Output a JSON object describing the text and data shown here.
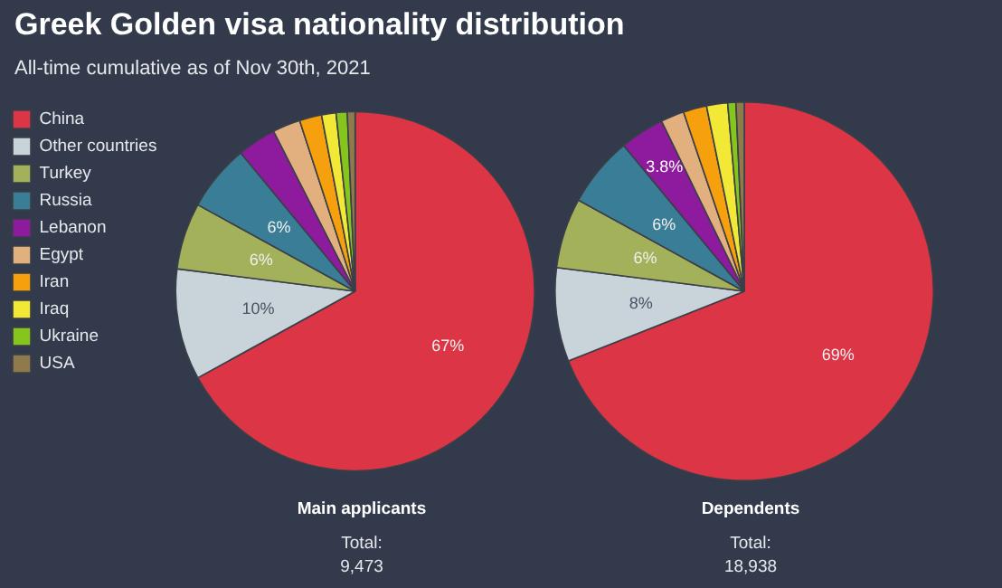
{
  "chart_data": [
    {
      "type": "pie",
      "title": "Greek Golden visa nationality distribution",
      "subtitle": "All-time cumulative as of Nov 30th, 2021",
      "xlabel": "Main applicants",
      "annotations": [
        "Total:",
        "9,473"
      ],
      "legend": "left",
      "categories": [
        "China",
        "Other countries",
        "Turkey",
        "Russia",
        "Lebanon",
        "Egypt",
        "Iran",
        "Iraq",
        "Ukraine",
        "USA"
      ],
      "values": [
        67,
        10,
        6,
        6,
        3.5,
        2.5,
        2,
        1.3,
        1,
        0.7
      ],
      "value_labels": [
        "67%",
        "10%",
        "6%",
        "6%",
        null,
        null,
        null,
        null,
        null,
        null
      ],
      "colors": [
        "#dc3545",
        "#c9d3da",
        "#a3b15a",
        "#3a7d96",
        "#8e1a9e",
        "#e2b07e",
        "#f5a00c",
        "#f2e836",
        "#86c61c",
        "#8f7a4c"
      ]
    },
    {
      "type": "pie",
      "xlabel": "Dependents",
      "annotations": [
        "Total:",
        "18,938"
      ],
      "values": [
        69,
        8,
        6,
        6,
        3.8,
        2,
        2,
        1.8,
        0.7,
        0.7
      ],
      "value_labels": [
        "69%",
        "8%",
        "6%",
        "6%",
        "3.8%",
        null,
        null,
        null,
        null,
        null
      ],
      "colors": [
        "#dc3545",
        "#c9d3da",
        "#a3b15a",
        "#3a7d96",
        "#8e1a9e",
        "#e2b07e",
        "#f5a00c",
        "#f2e836",
        "#86c61c",
        "#8f7a4c"
      ]
    }
  ]
}
